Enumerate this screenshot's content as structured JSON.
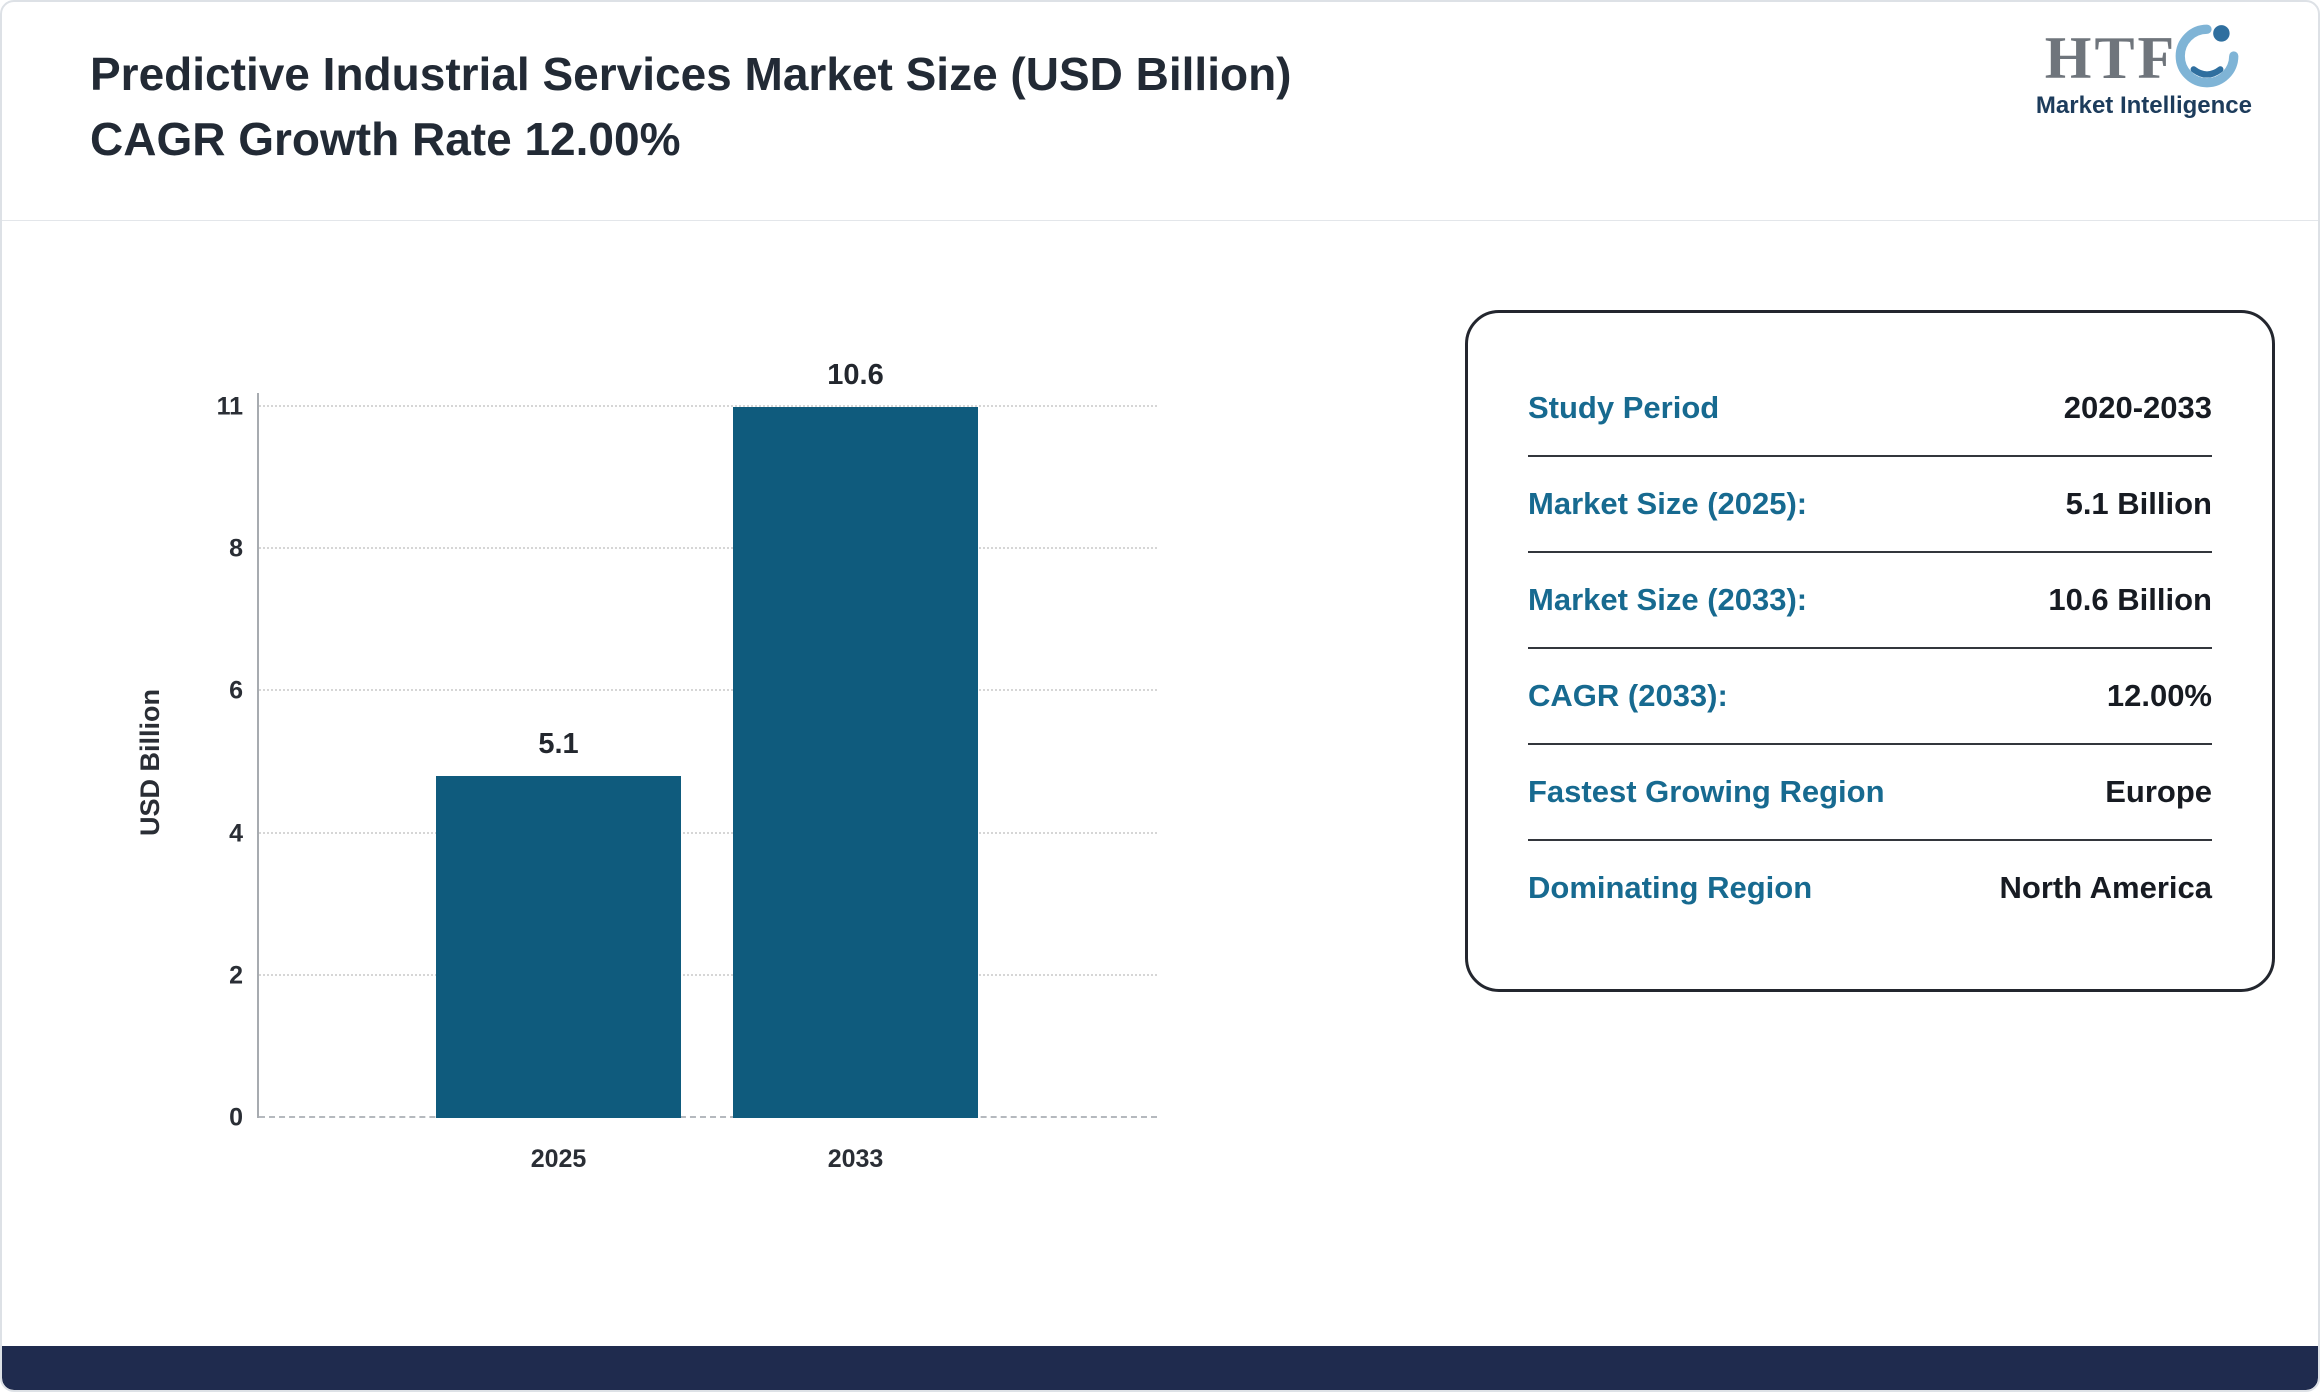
{
  "header": {
    "title": "Predictive Industrial Services Market Size (USD Billion) CAGR Growth Rate 12.00%",
    "logo": {
      "text": "HTF",
      "subtext": "Market Intelligence"
    }
  },
  "chart_data": {
    "type": "bar",
    "title": "Predictive Industrial Services Market Size (USD Billion) CAGR Growth Rate 12.00%",
    "categories": [
      "2025",
      "2033"
    ],
    "values": [
      5.1,
      10.6
    ],
    "value_labels": [
      "5.1",
      "10.6"
    ],
    "xlabel": "",
    "ylabel": "USD Billion",
    "y_ticks": [
      0,
      2,
      4,
      6,
      8,
      11
    ],
    "ylim": [
      0,
      11
    ],
    "grid": true,
    "legend": "none",
    "bar_color": "#0f5b7d"
  },
  "card": {
    "rows": [
      {
        "label": "Study Period",
        "value": "2020-2033"
      },
      {
        "label": "Market Size (2025):",
        "value": "5.1 Billion"
      },
      {
        "label": "Market Size (2033):",
        "value": "10.6 Billion"
      },
      {
        "label": "CAGR (2033):",
        "value": "12.00%"
      },
      {
        "label": "Fastest Growing Region",
        "value": "Europe"
      },
      {
        "label": "Dominating Region",
        "value": "North America"
      }
    ]
  },
  "colors": {
    "bar": "#0f5b7d",
    "accent_label": "#176a90",
    "value_text": "#171b22",
    "bottom_strip": "#1f2b4e"
  }
}
